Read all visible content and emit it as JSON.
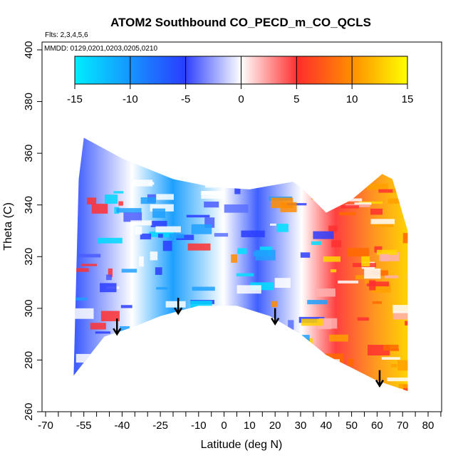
{
  "chart_data": {
    "type": "heatmap",
    "title": "ATOM2 Southbound CO_PECD_m_CO_QCLS",
    "flights_note": "Flts: 2,3,4,5,6",
    "dates_note": "MMDD: 0129,0201,0203,0205,0210",
    "xlabel": "Latitude (deg N)",
    "ylabel": "Theta (C)",
    "xlim": [
      -70,
      85
    ],
    "ylim": [
      260,
      400
    ],
    "x_tick_labels": [
      "-70",
      "-55",
      "-40",
      "-25",
      "-10",
      "0",
      "10",
      "20",
      "30",
      "40",
      "50",
      "60",
      "70",
      "80"
    ],
    "x_tick_values": [
      -70,
      -55,
      -40,
      -25,
      -10,
      0,
      10,
      20,
      30,
      40,
      50,
      60,
      70,
      80
    ],
    "x_minor_ticks": [
      -65,
      -60,
      -50,
      -45,
      -35,
      -30,
      -20,
      -15,
      -5,
      5,
      15,
      25,
      35,
      45,
      55,
      65,
      75,
      85
    ],
    "y_tick_labels": [
      "260",
      "280",
      "300",
      "320",
      "340",
      "360",
      "380",
      "400"
    ],
    "y_tick_values": [
      260,
      280,
      300,
      320,
      340,
      360,
      380,
      400
    ],
    "colorbar": {
      "range": [
        -15,
        15
      ],
      "tick_labels": [
        "-15",
        "-10",
        "-5",
        "0",
        "5",
        "10",
        "15"
      ],
      "tick_values": [
        -15,
        -10,
        -5,
        0,
        5,
        10,
        15
      ],
      "colors": [
        "#00eeff",
        "#2a3dff",
        "#ffffff",
        "#ff2d2d",
        "#ffff00"
      ]
    },
    "coverage_boundary": {
      "top": [
        [
          -57,
          350
        ],
        [
          -55,
          366
        ],
        [
          -40,
          358
        ],
        [
          -20,
          350
        ],
        [
          -5,
          347
        ],
        [
          10,
          346
        ],
        [
          27,
          349
        ],
        [
          30,
          347
        ],
        [
          40,
          337
        ],
        [
          50,
          342
        ],
        [
          62,
          352
        ],
        [
          66,
          350
        ],
        [
          72,
          330
        ]
      ],
      "bottom": [
        [
          72,
          268
        ],
        [
          60,
          272
        ],
        [
          40,
          282
        ],
        [
          30,
          290
        ],
        [
          18,
          297
        ],
        [
          5,
          301
        ],
        [
          -10,
          301
        ],
        [
          -25,
          297
        ],
        [
          -35,
          293
        ],
        [
          -47,
          289
        ],
        [
          -55,
          279
        ],
        [
          -59,
          274
        ]
      ]
    },
    "profile_markers": [
      {
        "latitude": -42,
        "theta": 290
      },
      {
        "latitude": -18,
        "theta": 298
      },
      {
        "latitude": 20,
        "theta": 294
      },
      {
        "latitude": 61,
        "theta": 270
      }
    ]
  }
}
